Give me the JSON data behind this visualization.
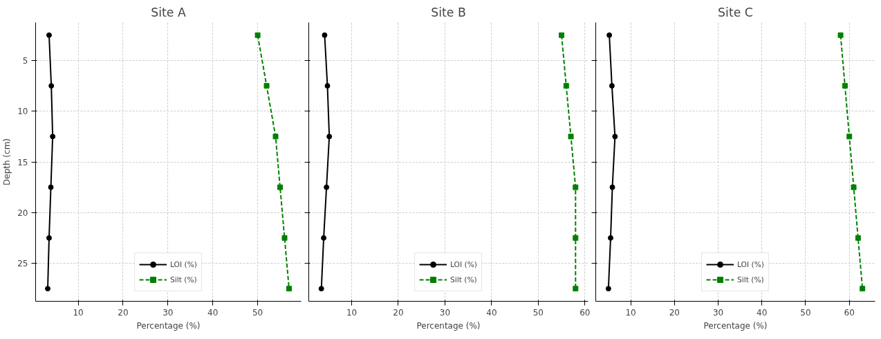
{
  "chart_data": [
    {
      "type": "line",
      "title": "Site A",
      "xlabel": "Percentage (%)",
      "ylabel": "Depth (cm)",
      "orientation": "horizontal",
      "legend": "bottom",
      "grid": true,
      "x": [
        2.5,
        7.5,
        12.5,
        17.5,
        22.5,
        27.5
      ],
      "xlim": [
        0.5,
        59.7
      ],
      "xticks": [
        10,
        20,
        30,
        40,
        50
      ],
      "ylim": [
        28.75,
        1.25
      ],
      "yticks": [
        5,
        10,
        15,
        20,
        25
      ],
      "series": [
        {
          "name": "LOI (%)",
          "color": "#000000",
          "marker": "circle",
          "line_style": "solid",
          "values": [
            3.5,
            4.0,
            4.3,
            3.9,
            3.5,
            3.2
          ]
        },
        {
          "name": "Silt (%)",
          "color": "#008000",
          "marker": "square",
          "line_style": "dashed",
          "values": [
            50,
            52,
            54,
            55,
            56,
            57
          ]
        }
      ]
    },
    {
      "type": "line",
      "title": "Site B",
      "xlabel": "Percentage (%)",
      "orientation": "horizontal",
      "legend": "bottom",
      "grid": true,
      "tick_labels": "x",
      "x": [
        2.5,
        7.5,
        12.5,
        17.5,
        22.5,
        27.5
      ],
      "xlim": [
        0.8,
        60.7
      ],
      "xticks": [
        10,
        20,
        30,
        40,
        50,
        60
      ],
      "ylim": [
        28.75,
        1.25
      ],
      "yticks": [
        5,
        10,
        15,
        20,
        25
      ],
      "series": [
        {
          "name": "LOI (%)",
          "color": "#000000",
          "marker": "circle",
          "line_style": "solid",
          "values": [
            4.2,
            4.8,
            5.2,
            4.6,
            4.0,
            3.5
          ]
        },
        {
          "name": "Silt (%)",
          "color": "#008000",
          "marker": "square",
          "line_style": "dashed",
          "values": [
            55,
            56,
            57,
            58,
            58,
            58
          ]
        }
      ]
    },
    {
      "type": "line",
      "title": "Site C",
      "xlabel": "Percentage (%)",
      "orientation": "horizontal",
      "legend": "bottom",
      "grid": true,
      "tick_labels": "x",
      "x": [
        2.5,
        7.5,
        12.5,
        17.5,
        22.5,
        27.5
      ],
      "xlim": [
        2.0,
        65.9
      ],
      "xticks": [
        10,
        20,
        30,
        40,
        50,
        60
      ],
      "ylim": [
        28.75,
        1.25
      ],
      "yticks": [
        5,
        10,
        15,
        20,
        25
      ],
      "series": [
        {
          "name": "LOI (%)",
          "color": "#000000",
          "marker": "circle",
          "line_style": "solid",
          "values": [
            5.1,
            5.7,
            6.4,
            5.8,
            5.4,
            4.9
          ]
        },
        {
          "name": "Silt (%)",
          "color": "#008000",
          "marker": "square",
          "line_style": "dashed",
          "values": [
            58,
            59,
            60,
            61,
            62,
            63
          ]
        }
      ]
    }
  ]
}
